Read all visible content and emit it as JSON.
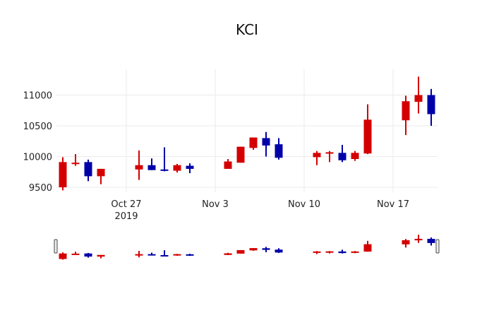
{
  "chart_data": {
    "type": "candlestick",
    "title": "KCI",
    "xlabel": "",
    "ylabel": "",
    "ylim": [
      9420,
      11420
    ],
    "y_ticks": [
      9500,
      10000,
      10500,
      11000
    ],
    "x_ticks": [
      {
        "date": "2019-10-27",
        "label": "Oct 27",
        "sublabel": "2019"
      },
      {
        "date": "2019-11-03",
        "label": "Nov 3",
        "sublabel": ""
      },
      {
        "date": "2019-11-10",
        "label": "Nov 10",
        "sublabel": ""
      },
      {
        "date": "2019-11-17",
        "label": "Nov 17",
        "sublabel": ""
      }
    ],
    "grid": true,
    "rangeslider": true,
    "increasing_color": "#0000A8",
    "decreasing_color": "#D40000",
    "candles": [
      {
        "date": "2019-10-22",
        "open": 9910,
        "high": 9990,
        "low": 9450,
        "close": 9500
      },
      {
        "date": "2019-10-23",
        "open": 9900,
        "high": 10040,
        "low": 9850,
        "close": 9880
      },
      {
        "date": "2019-10-24",
        "open": 9680,
        "high": 9950,
        "low": 9600,
        "close": 9910
      },
      {
        "date": "2019-10-25",
        "open": 9800,
        "high": 9800,
        "low": 9550,
        "close": 9680
      },
      {
        "date": "2019-10-28",
        "open": 9860,
        "high": 10100,
        "low": 9620,
        "close": 9790
      },
      {
        "date": "2019-10-29",
        "open": 9780,
        "high": 9970,
        "low": 9780,
        "close": 9860
      },
      {
        "date": "2019-10-30",
        "open": 9770,
        "high": 10150,
        "low": 9760,
        "close": 9790
      },
      {
        "date": "2019-10-31",
        "open": 9860,
        "high": 9880,
        "low": 9740,
        "close": 9770
      },
      {
        "date": "2019-11-01",
        "open": 9800,
        "high": 9890,
        "low": 9730,
        "close": 9850
      },
      {
        "date": "2019-11-04",
        "open": 9920,
        "high": 9960,
        "low": 9800,
        "close": 9800
      },
      {
        "date": "2019-11-05",
        "open": 10160,
        "high": 10160,
        "low": 9900,
        "close": 9900
      },
      {
        "date": "2019-11-06",
        "open": 10310,
        "high": 10310,
        "low": 10110,
        "close": 10140
      },
      {
        "date": "2019-11-07",
        "open": 10180,
        "high": 10400,
        "low": 10000,
        "close": 10300
      },
      {
        "date": "2019-11-08",
        "open": 9980,
        "high": 10300,
        "low": 9950,
        "close": 10200
      },
      {
        "date": "2019-11-11",
        "open": 10060,
        "high": 10090,
        "low": 9860,
        "close": 9990
      },
      {
        "date": "2019-11-12",
        "open": 10070,
        "high": 10090,
        "low": 9910,
        "close": 10050
      },
      {
        "date": "2019-11-13",
        "open": 9940,
        "high": 10190,
        "low": 9910,
        "close": 10060
      },
      {
        "date": "2019-11-14",
        "open": 10060,
        "high": 10090,
        "low": 9930,
        "close": 9960
      },
      {
        "date": "2019-11-15",
        "open": 10600,
        "high": 10850,
        "low": 10040,
        "close": 10050
      },
      {
        "date": "2019-11-18",
        "open": 10900,
        "high": 10990,
        "low": 10350,
        "close": 10590
      },
      {
        "date": "2019-11-19",
        "open": 11000,
        "high": 11300,
        "low": 10700,
        "close": 10890
      },
      {
        "date": "2019-11-20",
        "open": 10690,
        "high": 11100,
        "low": 10500,
        "close": 11000
      }
    ]
  }
}
